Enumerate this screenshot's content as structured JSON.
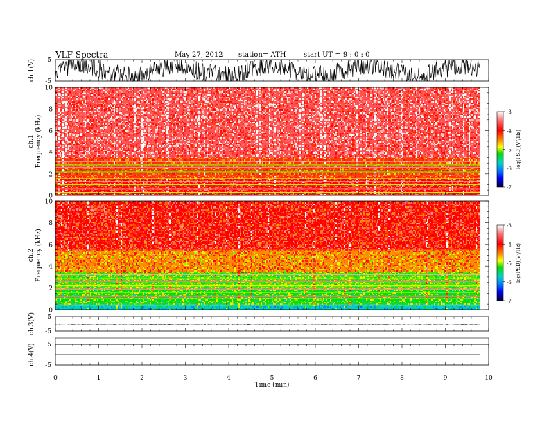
{
  "header": {
    "title": "VLF  Spectra",
    "date": "May 27, 2012",
    "station": "station= ATH",
    "start": "start  UT  =   9  : 0  : 0"
  },
  "colors": {
    "axis": "#000000",
    "spectrum_scale": [
      "#000066",
      "#0000ff",
      "#00a0ff",
      "#00e0e0",
      "#00e000",
      "#90ee00",
      "#ffff00",
      "#ff8c00",
      "#ff2a1a",
      "#ffffff"
    ]
  },
  "chart_data": [
    {
      "type": "line",
      "panel": "ch1-waveform",
      "ylabel": "ch.1(V)",
      "yticks": [
        "5",
        "-5"
      ],
      "ylim": [
        -5,
        5
      ],
      "xlim": [
        0,
        9.8
      ],
      "description_level": "saturated oscillating waveform spanning roughly -5 to 5 V"
    },
    {
      "type": "heatmap",
      "panel": "ch1-spectrogram",
      "ylabel_channel": "ch.1",
      "ylabel": "Frequency  (kHz)",
      "ylim": [
        0,
        10
      ],
      "yticks": [
        "0",
        "2",
        "4",
        "6",
        "8",
        "10"
      ],
      "xlim": [
        0,
        9.8
      ],
      "colorbar": {
        "label": "log(PSD)(V²/Hz)",
        "ticks": [
          "-3",
          "-4",
          "-5",
          "-6",
          "-7"
        ],
        "range": [
          -7,
          -3
        ]
      },
      "levels_by_band": [
        {
          "freq_range": [
            0.0,
            1.5
          ],
          "log_psd": -3.8
        },
        {
          "freq_range": [
            1.5,
            3.5
          ],
          "log_psd": -4.0
        },
        {
          "freq_range": [
            3.5,
            10.0
          ],
          "log_psd": -3.5
        }
      ]
    },
    {
      "type": "heatmap",
      "panel": "ch2-spectrogram",
      "ylabel_channel": "ch.2",
      "ylabel": "Frequency  (kHz)",
      "ylim": [
        0,
        10
      ],
      "yticks": [
        "0",
        "2",
        "4",
        "6",
        "8",
        "10"
      ],
      "xlim": [
        0,
        9.8
      ],
      "colorbar": {
        "label": "log(PSD)(V²/Hz)",
        "ticks": [
          "-3",
          "-4",
          "-5",
          "-6",
          "-7"
        ],
        "range": [
          -7,
          -3
        ]
      },
      "levels_by_band": [
        {
          "freq_range": [
            0.0,
            0.5
          ],
          "log_psd": -5.6
        },
        {
          "freq_range": [
            0.5,
            1.8
          ],
          "log_psd": -5.0
        },
        {
          "freq_range": [
            1.8,
            3.5
          ],
          "log_psd": -4.9
        },
        {
          "freq_range": [
            3.5,
            5.5
          ],
          "log_psd": -4.3
        },
        {
          "freq_range": [
            5.5,
            10.0
          ],
          "log_psd": -3.8
        }
      ]
    },
    {
      "type": "line",
      "panel": "ch3-waveform",
      "ylabel": "ch.3(V)",
      "yticks": [
        "5",
        "-5"
      ],
      "ylim": [
        -5,
        5
      ],
      "xlim": [
        0,
        9.8
      ],
      "level": 0
    },
    {
      "type": "line",
      "panel": "ch4-waveform",
      "ylabel": "ch.4(V)",
      "yticks": [
        "5",
        "-5"
      ],
      "ylim": [
        -5,
        5
      ],
      "xlim": [
        0,
        9.8
      ],
      "level": 0,
      "xlabel": "Time  (min)",
      "xticks": [
        "0",
        "1",
        "2",
        "3",
        "4",
        "5",
        "6",
        "7",
        "8",
        "9",
        "10"
      ],
      "xrange": [
        0,
        10
      ]
    }
  ]
}
